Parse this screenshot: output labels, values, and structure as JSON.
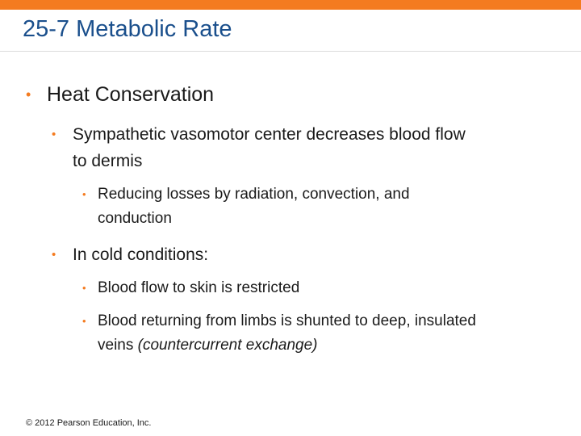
{
  "slide": {
    "title": "25-7 Metabolic Rate",
    "bullets": {
      "b1": "Heat Conservation",
      "b1_1_line1": "Sympathetic vasomotor center decreases blood flow",
      "b1_1_line2": "to dermis",
      "b1_1_1_line1": "Reducing losses by radiation, convection, and",
      "b1_1_1_line2": "conduction",
      "b1_2": "In cold conditions:",
      "b1_2_1": "Blood flow to skin is restricted",
      "b1_2_2_line1": "Blood returning from limbs is shunted to deep, insulated",
      "b1_2_2_line2_plain": "veins ",
      "b1_2_2_line2_italic": "(countercurrent exchange)"
    },
    "bullet_glyph": "•",
    "footer": "© 2012 Pearson Education, Inc."
  },
  "colors": {
    "accent": "#f47b20",
    "title": "#1a4f8c"
  }
}
